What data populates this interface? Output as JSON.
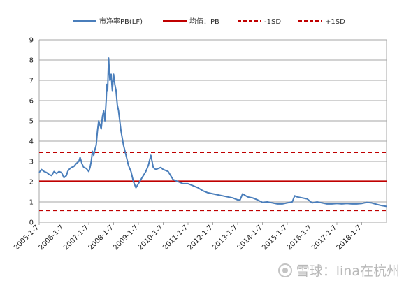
{
  "chart_data": {
    "type": "line",
    "title": "",
    "xlabel": "",
    "ylabel": "",
    "ylim": [
      0,
      9
    ],
    "yticks": [
      "0",
      "1",
      "2",
      "3",
      "4",
      "5",
      "6",
      "7",
      "8",
      "9"
    ],
    "xticks": [
      "2005-1-7",
      "2006-1-7",
      "2007-1-7",
      "2008-1-7",
      "2009-1-7",
      "2010-1-7",
      "2011-1-7",
      "2012-1-7",
      "2013-1-7",
      "2014-1-7",
      "2015-1-7",
      "2016-1-7",
      "2017-1-7",
      "2018-1-7"
    ],
    "grid": "horizontal",
    "legend_position": "top",
    "series": [
      {
        "name": "市净率PB(LF)",
        "color": "#4a7ebb",
        "style": "solid",
        "x": [
          2005.0,
          2005.1,
          2005.2,
          2005.3,
          2005.4,
          2005.5,
          2005.6,
          2005.7,
          2005.8,
          2005.9,
          2006.0,
          2006.1,
          2006.15,
          2006.2,
          2006.3,
          2006.4,
          2006.5,
          2006.6,
          2006.65,
          2006.72,
          2006.8,
          2006.9,
          2007.0,
          2007.05,
          2007.1,
          2007.15,
          2007.2,
          2007.25,
          2007.3,
          2007.35,
          2007.4,
          2007.45,
          2007.5,
          2007.55,
          2007.6,
          2007.65,
          2007.7,
          2007.73,
          2007.76,
          2007.8,
          2007.85,
          2007.9,
          2007.95,
          2008.0,
          2008.05,
          2008.1,
          2008.15,
          2008.2,
          2008.3,
          2008.4,
          2008.5,
          2008.6,
          2008.7,
          2008.8,
          2008.9,
          2009.0,
          2009.1,
          2009.2,
          2009.3,
          2009.4,
          2009.5,
          2009.6,
          2009.7,
          2009.8,
          2009.9,
          2010.0,
          2010.2,
          2010.4,
          2010.6,
          2010.8,
          2011.0,
          2011.2,
          2011.4,
          2011.6,
          2011.8,
          2012.0,
          2012.2,
          2012.4,
          2012.6,
          2012.8,
          2013.0,
          2013.1,
          2013.2,
          2013.4,
          2013.6,
          2013.8,
          2014.0,
          2014.2,
          2014.4,
          2014.6,
          2014.8,
          2015.0,
          2015.2,
          2015.3,
          2015.4,
          2015.6,
          2015.8,
          2016.0,
          2016.2,
          2016.4,
          2016.6,
          2016.8,
          2017.0,
          2017.2,
          2017.4,
          2017.6,
          2017.8,
          2018.0,
          2018.2,
          2018.4,
          2018.6,
          2018.8,
          2019.0
        ],
        "values": [
          2.45,
          2.6,
          2.5,
          2.45,
          2.35,
          2.3,
          2.5,
          2.4,
          2.5,
          2.45,
          2.2,
          2.3,
          2.5,
          2.6,
          2.7,
          2.75,
          2.9,
          3.0,
          3.2,
          2.9,
          2.7,
          2.65,
          2.5,
          2.7,
          3.0,
          3.5,
          3.3,
          3.6,
          3.8,
          4.5,
          5.0,
          4.8,
          4.6,
          5.2,
          5.5,
          5.0,
          6.0,
          6.8,
          6.5,
          8.1,
          7.0,
          7.3,
          6.5,
          7.3,
          6.8,
          6.5,
          5.8,
          5.5,
          4.5,
          3.8,
          3.3,
          2.8,
          2.5,
          2.0,
          1.7,
          1.9,
          2.1,
          2.3,
          2.5,
          2.8,
          3.3,
          2.7,
          2.6,
          2.65,
          2.7,
          2.6,
          2.5,
          2.1,
          2.0,
          1.9,
          1.9,
          1.8,
          1.7,
          1.55,
          1.45,
          1.4,
          1.35,
          1.3,
          1.25,
          1.2,
          1.1,
          1.1,
          1.4,
          1.25,
          1.2,
          1.1,
          0.98,
          1.0,
          0.95,
          0.9,
          0.9,
          0.95,
          1.0,
          1.3,
          1.25,
          1.2,
          1.15,
          0.95,
          1.0,
          0.95,
          0.9,
          0.9,
          0.92,
          0.9,
          0.92,
          0.9,
          0.9,
          0.92,
          0.98,
          0.95,
          0.88,
          0.82,
          0.78
        ]
      },
      {
        "name": "均值：PB",
        "color": "#c00000",
        "style": "solid",
        "value": 2.02
      },
      {
        "name": "-1SD",
        "color": "#c00000",
        "style": "dashed",
        "value": 0.58
      },
      {
        "name": "+1SD",
        "color": "#c00000",
        "style": "dashed",
        "value": 3.45
      }
    ]
  },
  "watermark": {
    "text": "雪球：lina在杭州",
    "icon": "snowball-logo-icon"
  }
}
